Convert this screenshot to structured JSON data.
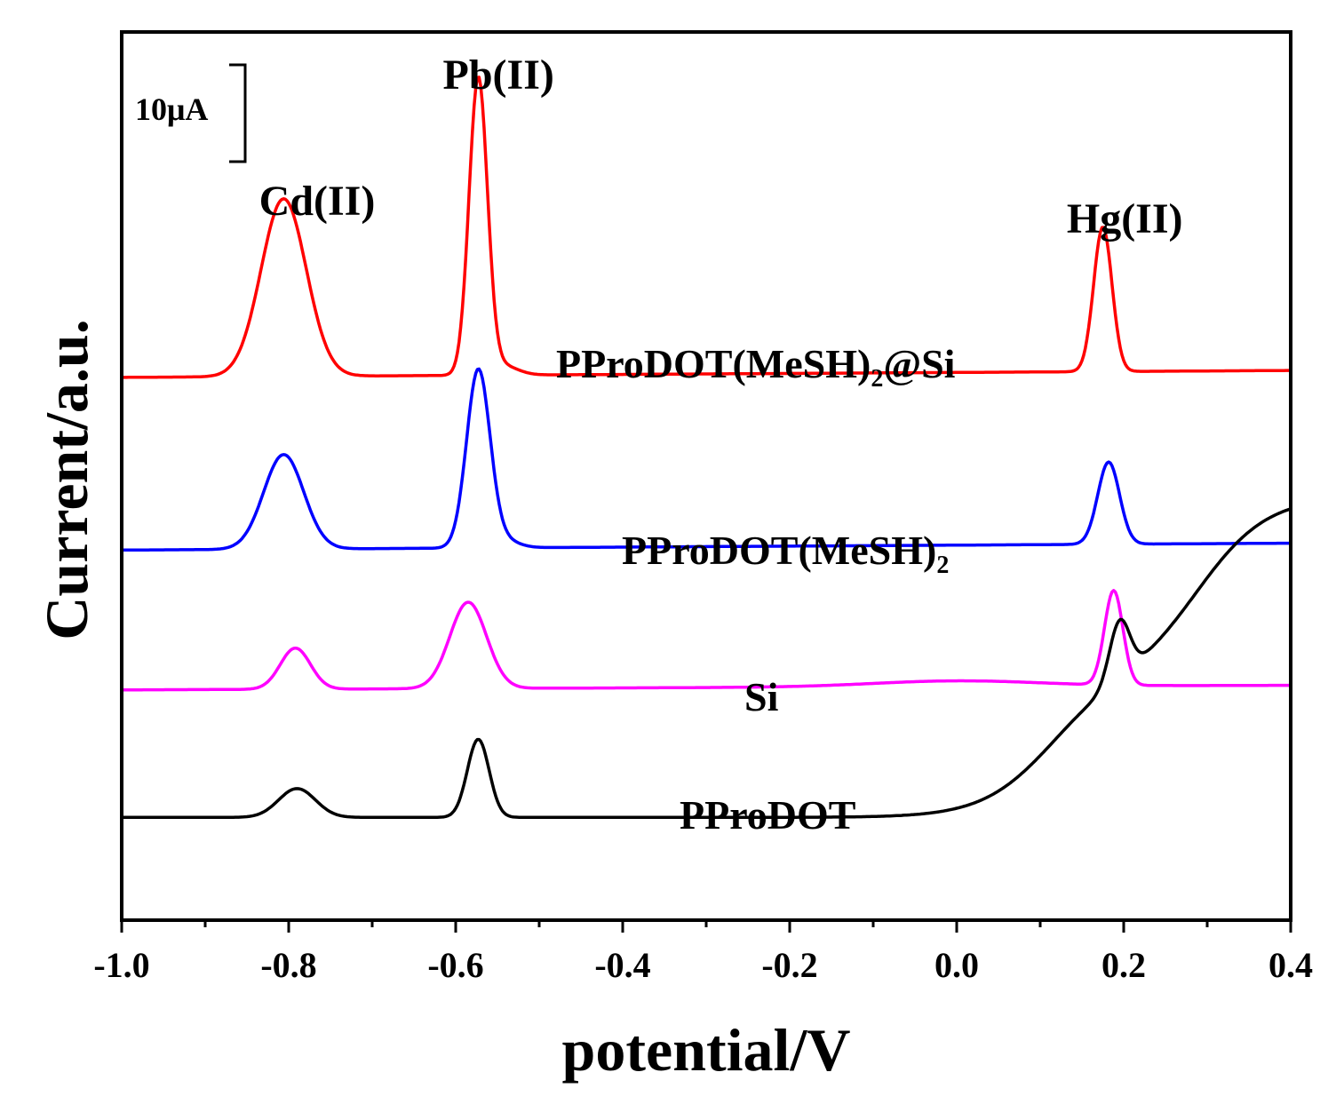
{
  "chart_data": {
    "type": "line",
    "xlabel": "potential/V",
    "ylabel": "Current/a.u.",
    "xlim": [
      -1.0,
      0.4
    ],
    "xticks": [
      "-1.0",
      "-0.8",
      "-0.6",
      "-0.4",
      "-0.2",
      "0.0",
      "0.2",
      "0.4"
    ],
    "ylim": [
      -10,
      98
    ],
    "y_unit": "µA (offset, arbitrary)",
    "scale_bar": {
      "label": "10μA",
      "value_uA": 10
    },
    "peak_labels": [
      {
        "text": "Cd(II)",
        "x": -0.8
      },
      {
        "text": "Pb(II)",
        "x": -0.57
      },
      {
        "text": "Hg(II)",
        "x": 0.18
      }
    ],
    "series": [
      {
        "name": "PProDOT(MeSH)2@Si",
        "label_main": "PProDOT(MeSH)",
        "label_sub": "2",
        "label_tail": "@Si",
        "color": "#ff0000",
        "baseline": 56.0,
        "baseline_slope": 0.6,
        "broad": {
          "amp": 0.0,
          "x0": 0.0,
          "w": 0.1
        },
        "tail": {
          "amp": 0.0,
          "x0": 0.1,
          "k": 10
        },
        "peaks": [
          {
            "x": -0.806,
            "h": 21.6,
            "w": 0.027
          },
          {
            "x": -0.573,
            "h": 36.0,
            "w": 0.011
          },
          {
            "x": -0.545,
            "h": 1.2,
            "w": 0.018
          },
          {
            "x": 0.175,
            "h": 17.6,
            "w": 0.011
          }
        ]
      },
      {
        "name": "PProDOT(MeSH)2",
        "label_main": "PProDOT(MeSH)",
        "label_sub": "2",
        "label_tail": "",
        "color": "#0000ff",
        "baseline": 35.0,
        "baseline_slope": 0.6,
        "broad": {
          "amp": 0.0,
          "x0": 0.0,
          "w": 0.1
        },
        "tail": {
          "amp": 0.0,
          "x0": 0.1,
          "k": 10
        },
        "peaks": [
          {
            "x": -0.806,
            "h": 11.5,
            "w": 0.024
          },
          {
            "x": -0.573,
            "h": 21.5,
            "w": 0.014
          },
          {
            "x": -0.545,
            "h": 1.0,
            "w": 0.018
          },
          {
            "x": 0.182,
            "h": 10.0,
            "w": 0.013
          }
        ]
      },
      {
        "name": "Si",
        "label_main": "Si",
        "label_sub": "",
        "label_tail": "",
        "color": "#ff00ff",
        "baseline": 18.0,
        "baseline_slope": 0.4,
        "broad": {
          "amp": 0.7,
          "x0": 0.0,
          "w": 0.1
        },
        "tail": {
          "amp": 0.0,
          "x0": 0.1,
          "k": 10
        },
        "peaks": [
          {
            "x": -0.792,
            "h": 5.0,
            "w": 0.018
          },
          {
            "x": -0.585,
            "h": 10.5,
            "w": 0.022
          },
          {
            "x": 0.188,
            "h": 11.5,
            "w": 0.011
          }
        ]
      },
      {
        "name": "PProDOT",
        "label_main": "PProDOT",
        "label_sub": "",
        "label_tail": "",
        "color": "#000000",
        "baseline": 2.5,
        "baseline_slope": 0.0,
        "broad": {
          "amp": 0.0,
          "x0": 0.0,
          "w": 0.1
        },
        "tail": {
          "amp": 17.0,
          "x0": 0.112,
          "k": 24
        },
        "extra_sigmoid": {
          "amp": 22.0,
          "x0": 0.29,
          "k": 24
        },
        "peaks": [
          {
            "x": -0.79,
            "h": 3.5,
            "w": 0.022
          },
          {
            "x": -0.573,
            "h": 9.5,
            "w": 0.013
          },
          {
            "x": 0.195,
            "h": 7.0,
            "w": 0.012
          }
        ]
      }
    ]
  }
}
